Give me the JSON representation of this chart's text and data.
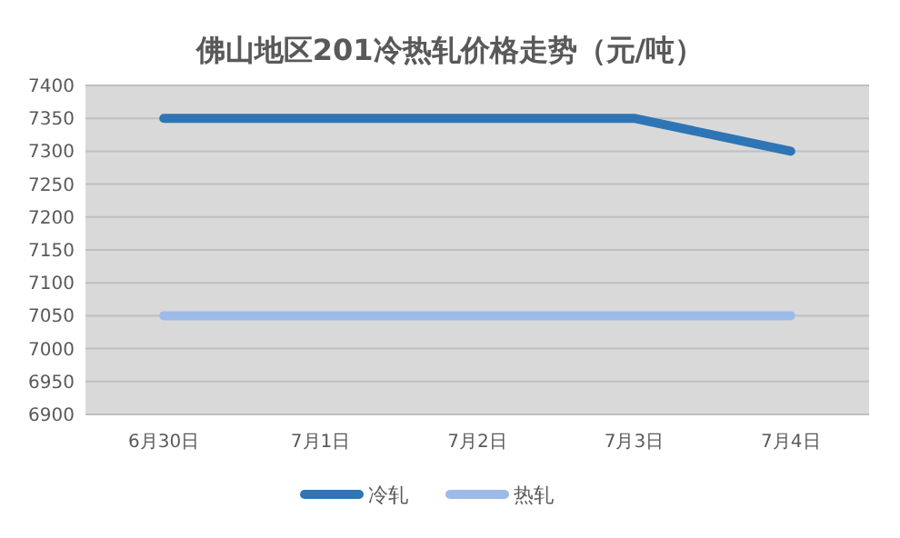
{
  "chart_data": {
    "type": "line",
    "title": "佛山地区201冷热轧价格走势（元/吨）",
    "categories": [
      "6月30日",
      "7月1日",
      "7月2日",
      "7月3日",
      "7月4日"
    ],
    "series": [
      {
        "name": "冷轧",
        "color": "#2e75b6",
        "values": [
          7350,
          7350,
          7350,
          7350,
          7300
        ]
      },
      {
        "name": "热轧",
        "color": "#9dbbe8",
        "values": [
          7050,
          7050,
          7050,
          7050,
          7050
        ]
      }
    ],
    "ylim": [
      6900,
      7400
    ],
    "yticks": [
      6900,
      6950,
      7000,
      7050,
      7100,
      7150,
      7200,
      7250,
      7300,
      7350,
      7400
    ],
    "grid": "y",
    "legend": "bottom"
  }
}
